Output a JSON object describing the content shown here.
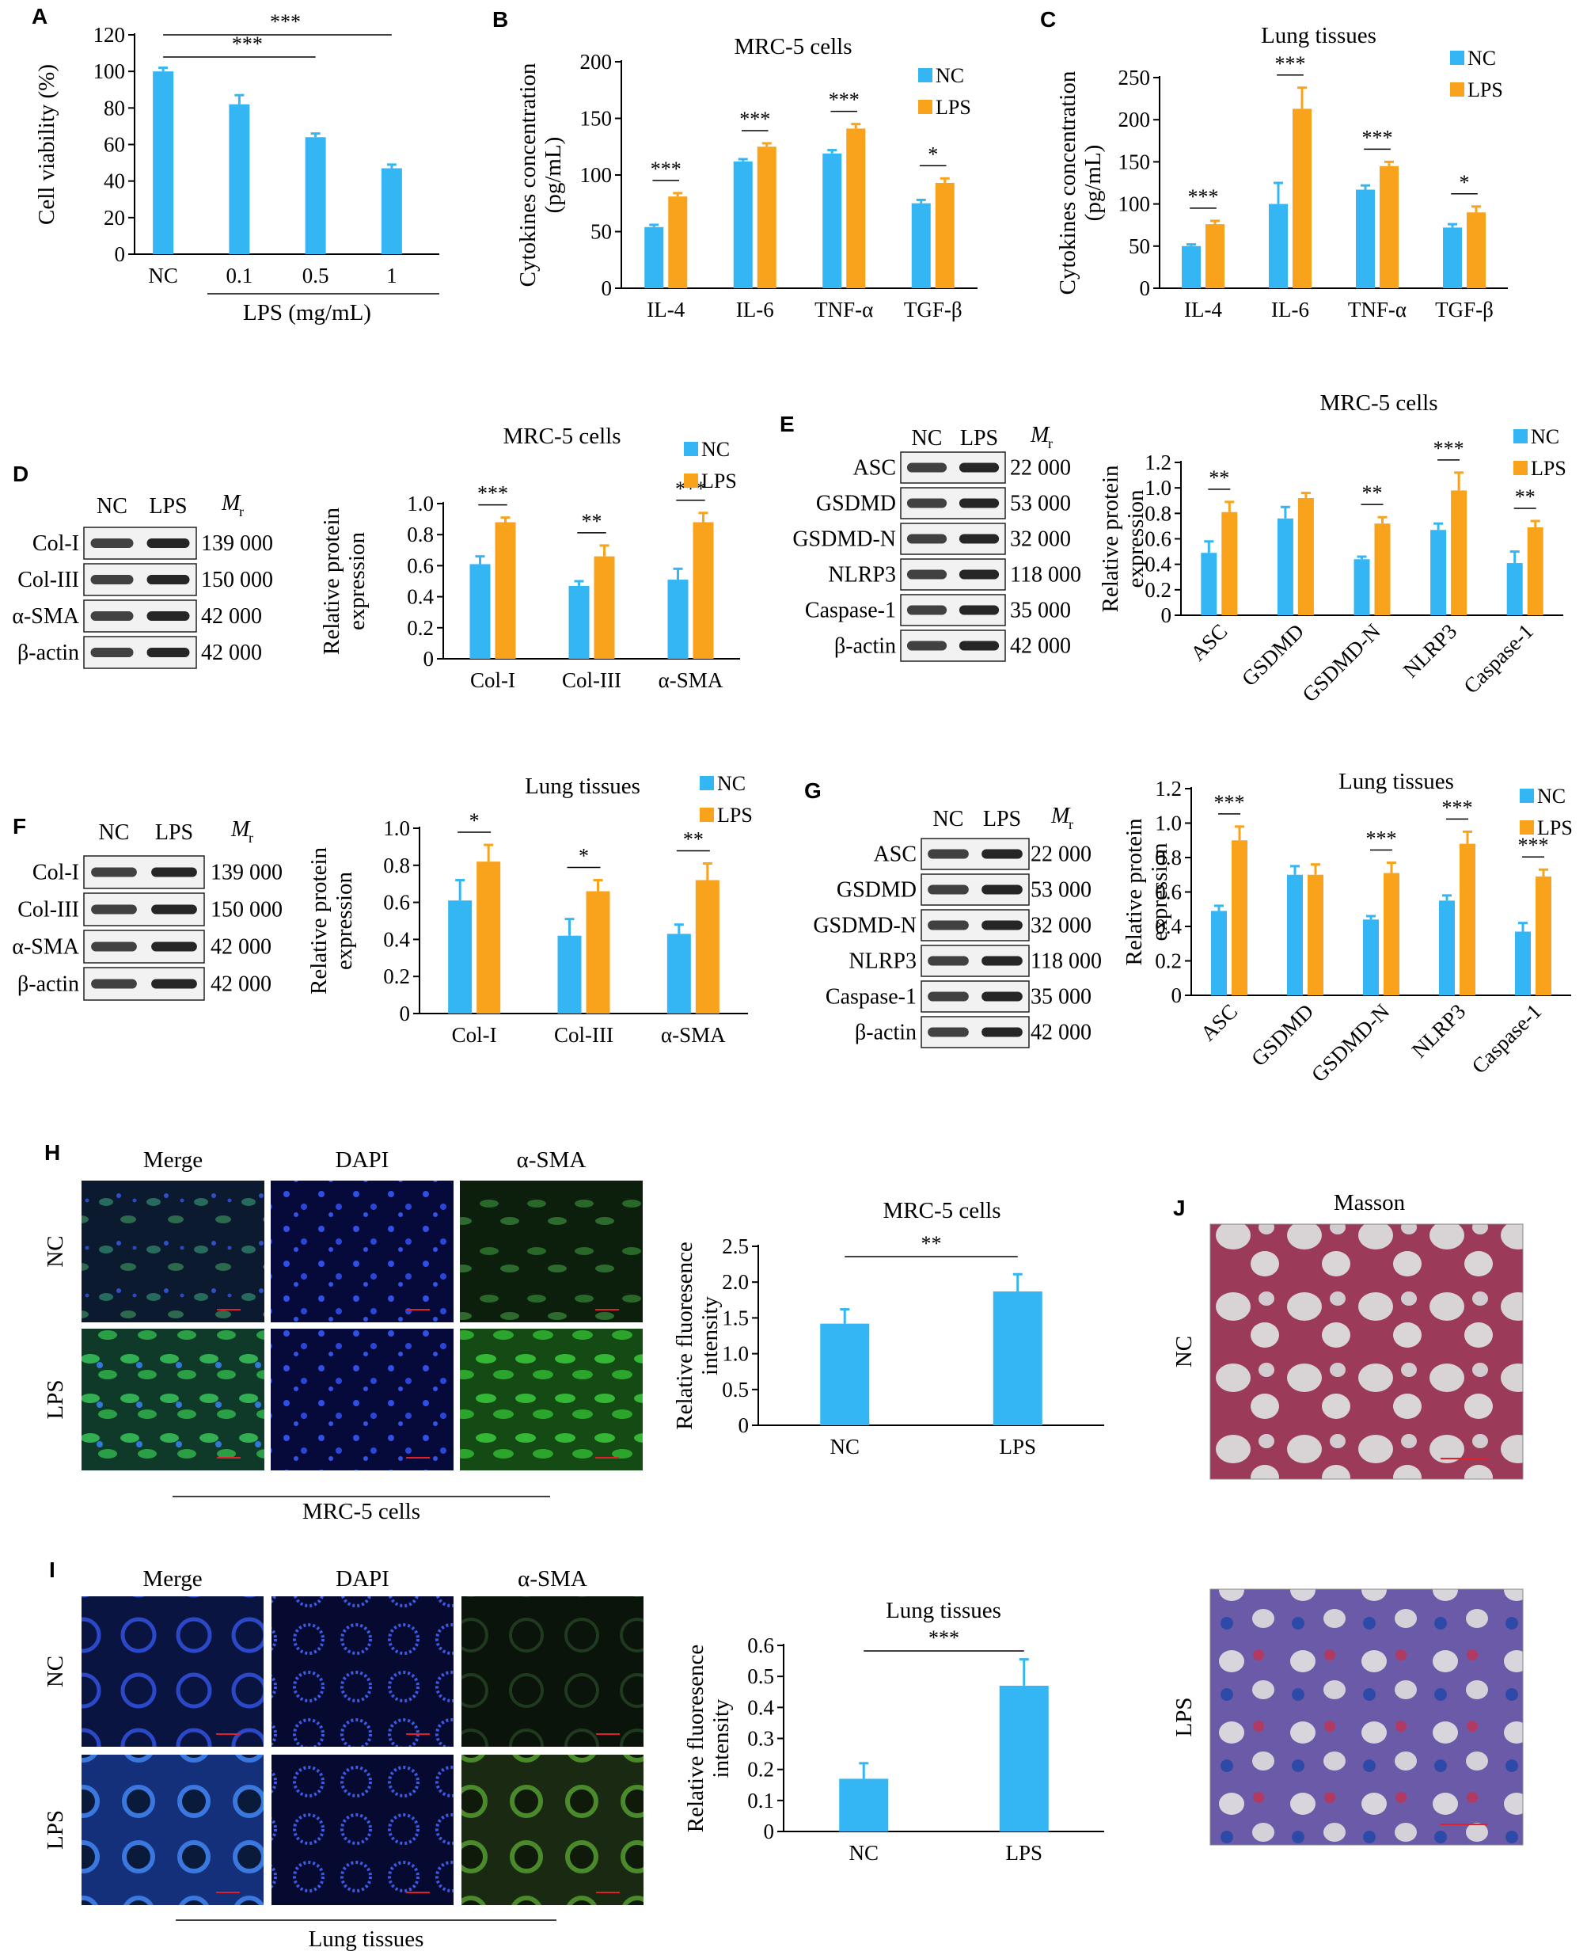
{
  "colors": {
    "nc": "#35B6F4",
    "lps": "#F9A21B",
    "axis": "#000000",
    "merge_bg": "#0b1a2e",
    "dapi_bg": "#060a3a",
    "sma_bg": "#0c1f0c",
    "masson_nc": "#c9a2ae",
    "masson_lps": "#a785b6"
  },
  "legend": {
    "nc": "NC",
    "lps": "LPS"
  },
  "panel_A": {
    "letter": "A",
    "chart_data": {
      "type": "bar",
      "categories": [
        "NC",
        "0.1",
        "0.5",
        "1"
      ],
      "values": [
        100,
        82,
        64,
        47
      ],
      "errors": [
        2,
        5,
        2,
        2
      ],
      "ylabel": "Cell viability (%)",
      "xlabel": "LPS (mg/mL)",
      "ylim": [
        0,
        120
      ],
      "yticks": [
        "0",
        "20",
        "40",
        "60",
        "80",
        "100",
        "120"
      ],
      "significance": [
        {
          "from": 0,
          "to": 3,
          "label": "***"
        },
        {
          "from": 0,
          "to": 2,
          "label": "***"
        }
      ]
    }
  },
  "panel_B": {
    "letter": "B",
    "chart_data": {
      "type": "bar",
      "title": "MRC-5 cells",
      "categories": [
        "IL-4",
        "IL-6",
        "TNF-α",
        "TGF-β"
      ],
      "series": [
        {
          "name": "NC",
          "values": [
            54,
            112,
            119,
            75
          ],
          "errors": [
            2,
            2,
            3,
            3
          ]
        },
        {
          "name": "LPS",
          "values": [
            81,
            125,
            141,
            93
          ],
          "errors": [
            3,
            3,
            4,
            4
          ]
        }
      ],
      "ylabel": "Cytokines concentration (pg/mL)",
      "ylabel_lines": [
        "Cytokines concentration",
        "(pg/mL)"
      ],
      "ylim": [
        0,
        200
      ],
      "yticks": [
        "0",
        "50",
        "100",
        "150",
        "200"
      ],
      "significance": [
        "***",
        "***",
        "***",
        "*"
      ]
    }
  },
  "panel_C": {
    "letter": "C",
    "chart_data": {
      "type": "bar",
      "title": "Lung tissues",
      "categories": [
        "IL-4",
        "IL-6",
        "TNF-α",
        "TGF-β"
      ],
      "series": [
        {
          "name": "NC",
          "values": [
            50,
            100,
            117,
            72
          ],
          "errors": [
            2,
            25,
            5,
            4
          ]
        },
        {
          "name": "LPS",
          "values": [
            76,
            213,
            145,
            90
          ],
          "errors": [
            4,
            25,
            5,
            7
          ]
        }
      ],
      "ylabel": "Cytokines concentration (pg/mL)",
      "ylabel_lines": [
        "Cytokines concentration",
        "(pg/mL)"
      ],
      "ylim": [
        0,
        250
      ],
      "yticks": [
        "0",
        "50",
        "100",
        "150",
        "200",
        "250"
      ],
      "significance": [
        "***",
        "***",
        "***",
        "*"
      ]
    }
  },
  "panel_D": {
    "letter": "D",
    "blot": {
      "cols": [
        "NC",
        "LPS"
      ],
      "mr": "M",
      "mr_sub": "r",
      "rows": [
        {
          "label": "Col-I",
          "mw": "139 000"
        },
        {
          "label": "Col-III",
          "mw": "150 000"
        },
        {
          "label": "α-SMA",
          "mw": "42 000"
        },
        {
          "label": "β-actin",
          "mw": "42 000"
        }
      ]
    },
    "chart_data": {
      "type": "bar",
      "title": "MRC-5 cells",
      "categories": [
        "Col-I",
        "Col-III",
        "α-SMA"
      ],
      "series": [
        {
          "name": "NC",
          "values": [
            0.61,
            0.47,
            0.51
          ],
          "errors": [
            0.05,
            0.03,
            0.07
          ]
        },
        {
          "name": "LPS",
          "values": [
            0.88,
            0.66,
            0.88
          ],
          "errors": [
            0.03,
            0.07,
            0.06
          ]
        }
      ],
      "ylabel": "Relative protein expression",
      "ylabel_lines": [
        "Relative protein",
        "expression"
      ],
      "ylim": [
        0,
        1.0
      ],
      "yticks": [
        "0",
        "0.2",
        "0.4",
        "0.6",
        "0.8",
        "1.0"
      ],
      "significance": [
        "***",
        "**",
        "***"
      ]
    }
  },
  "panel_E": {
    "letter": "E",
    "blot": {
      "cols": [
        "NC",
        "LPS"
      ],
      "mr": "M",
      "mr_sub": "r",
      "rows": [
        {
          "label": "ASC",
          "mw": "22 000"
        },
        {
          "label": "GSDMD",
          "mw": "53 000"
        },
        {
          "label": "GSDMD-N",
          "mw": "32 000"
        },
        {
          "label": "NLRP3",
          "mw": "118 000"
        },
        {
          "label": "Caspase-1",
          "mw": "35 000"
        },
        {
          "label": "β-actin",
          "mw": "42 000"
        }
      ]
    },
    "chart_data": {
      "type": "bar",
      "title": "MRC-5 cells",
      "categories": [
        "ASC",
        "GSDMD",
        "GSDMD-N",
        "NLRP3",
        "Caspase-1"
      ],
      "series": [
        {
          "name": "NC",
          "values": [
            0.49,
            0.76,
            0.44,
            0.67,
            0.41
          ],
          "errors": [
            0.09,
            0.09,
            0.02,
            0.05,
            0.09
          ]
        },
        {
          "name": "LPS",
          "values": [
            0.81,
            0.92,
            0.72,
            0.98,
            0.69
          ],
          "errors": [
            0.08,
            0.04,
            0.05,
            0.14,
            0.05
          ]
        }
      ],
      "ylabel": "Relative protein expression",
      "ylabel_lines": [
        "Relative protein",
        "expression"
      ],
      "ylim": [
        0,
        1.2
      ],
      "yticks": [
        "0",
        "0.2",
        "0.4",
        "0.6",
        "0.8",
        "1.0",
        "1.2"
      ],
      "significance": [
        "**",
        "",
        "**",
        "***",
        "**"
      ]
    }
  },
  "panel_F": {
    "letter": "F",
    "blot": {
      "cols": [
        "NC",
        "LPS"
      ],
      "mr": "M",
      "mr_sub": "r",
      "rows": [
        {
          "label": "Col-I",
          "mw": "139 000"
        },
        {
          "label": "Col-III",
          "mw": "150 000"
        },
        {
          "label": "α-SMA",
          "mw": "42 000"
        },
        {
          "label": "β-actin",
          "mw": "42 000"
        }
      ]
    },
    "chart_data": {
      "type": "bar",
      "title": "Lung tissues",
      "categories": [
        "Col-I",
        "Col-III",
        "α-SMA"
      ],
      "series": [
        {
          "name": "NC",
          "values": [
            0.61,
            0.42,
            0.43
          ],
          "errors": [
            0.11,
            0.09,
            0.05
          ]
        },
        {
          "name": "LPS",
          "values": [
            0.82,
            0.66,
            0.72
          ],
          "errors": [
            0.09,
            0.06,
            0.09
          ]
        }
      ],
      "ylabel": "Relative protein expression",
      "ylabel_lines": [
        "Relative protein",
        "expression"
      ],
      "ylim": [
        0,
        1.0
      ],
      "yticks": [
        "0",
        "0.2",
        "0.4",
        "0.6",
        "0.8",
        "1.0"
      ],
      "significance": [
        "*",
        "*",
        "**"
      ]
    }
  },
  "panel_G": {
    "letter": "G",
    "blot": {
      "cols": [
        "NC",
        "LPS"
      ],
      "mr": "M",
      "mr_sub": "r",
      "rows": [
        {
          "label": "ASC",
          "mw": "22 000"
        },
        {
          "label": "GSDMD",
          "mw": "53 000"
        },
        {
          "label": "GSDMD-N",
          "mw": "32 000"
        },
        {
          "label": "NLRP3",
          "mw": "118 000"
        },
        {
          "label": "Caspase-1",
          "mw": "35 000"
        },
        {
          "label": "β-actin",
          "mw": "42 000"
        }
      ]
    },
    "chart_data": {
      "type": "bar",
      "title": "Lung tissues",
      "categories": [
        "ASC",
        "GSDMD",
        "GSDMD-N",
        "NLRP3",
        "Caspase-1"
      ],
      "series": [
        {
          "name": "NC",
          "values": [
            0.49,
            0.7,
            0.44,
            0.55,
            0.37
          ],
          "errors": [
            0.03,
            0.05,
            0.02,
            0.03,
            0.05
          ]
        },
        {
          "name": "LPS",
          "values": [
            0.9,
            0.7,
            0.71,
            0.88,
            0.69
          ],
          "errors": [
            0.08,
            0.06,
            0.06,
            0.07,
            0.04
          ]
        }
      ],
      "ylabel": "Relative protein expression",
      "ylabel_lines": [
        "Relative protein",
        "expression"
      ],
      "ylim": [
        0,
        1.2
      ],
      "yticks": [
        "0",
        "0.2",
        "0.4",
        "0.6",
        "0.8",
        "1.0",
        "1.2"
      ],
      "significance": [
        "***",
        "",
        "***",
        "***",
        "***"
      ]
    }
  },
  "panel_H": {
    "letter": "H",
    "images": {
      "cols": [
        "Merge",
        "DAPI",
        "α-SMA"
      ],
      "rows": [
        "NC",
        "LPS"
      ],
      "caption": "MRC-5 cells"
    },
    "chart_data": {
      "type": "bar",
      "title": "MRC-5 cells",
      "categories": [
        "NC",
        "LPS"
      ],
      "values": [
        1.42,
        1.87
      ],
      "errors": [
        0.2,
        0.24
      ],
      "ylabel": "Relative fluoresence intensity",
      "ylabel_lines": [
        "Relative fluoresence",
        "intensity"
      ],
      "ylim": [
        0,
        2.5
      ],
      "yticks": [
        "0",
        "0.5",
        "1.0",
        "1.5",
        "2.0",
        "2.5"
      ],
      "significance": [
        {
          "from": 0,
          "to": 1,
          "label": "**"
        }
      ]
    }
  },
  "panel_I": {
    "letter": "I",
    "images": {
      "cols": [
        "Merge",
        "DAPI",
        "α-SMA"
      ],
      "rows": [
        "NC",
        "LPS"
      ],
      "caption": "Lung tissues"
    },
    "chart_data": {
      "type": "bar",
      "title": "Lung tissues",
      "categories": [
        "NC",
        "LPS"
      ],
      "values": [
        0.17,
        0.47
      ],
      "errors": [
        0.05,
        0.085
      ],
      "ylabel": "Relative fluoresence intensity",
      "ylabel_lines": [
        "Relative fluoresence",
        "intensity"
      ],
      "ylim": [
        0,
        0.6
      ],
      "yticks": [
        "0",
        "0.1",
        "0.2",
        "0.3",
        "0.4",
        "0.5",
        "0.6"
      ],
      "significance": [
        {
          "from": 0,
          "to": 1,
          "label": "***"
        }
      ]
    }
  },
  "panel_J": {
    "letter": "J",
    "title": "Masson",
    "rows": [
      "NC",
      "LPS"
    ]
  }
}
